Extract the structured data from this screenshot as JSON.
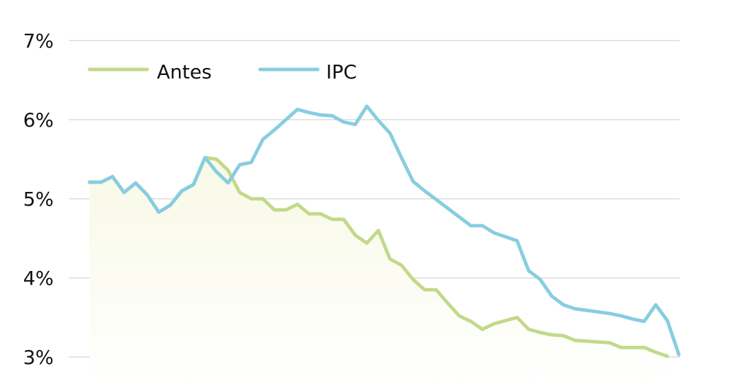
{
  "chart_data": {
    "type": "line",
    "title": "",
    "xlabel": "",
    "ylabel": "",
    "ylim": [
      3,
      7
    ],
    "y_ticks": [
      "3%",
      "4%",
      "5%",
      "6%",
      "7%"
    ],
    "y_tick_values": [
      3,
      4,
      5,
      6,
      7
    ],
    "grid": true,
    "legend": "top-left",
    "series": [
      {
        "name": "Antes",
        "color": "#c2d98a",
        "fill": "#f8f9e6",
        "values": [
          5.21,
          5.21,
          5.28,
          5.08,
          5.2,
          5.05,
          4.83,
          4.92,
          5.1,
          5.18,
          5.52,
          5.5,
          5.36,
          5.08,
          5.0,
          5.0,
          4.86,
          4.86,
          4.93,
          4.81,
          4.81,
          4.74,
          4.74,
          4.54,
          4.44,
          4.6,
          4.24,
          4.16,
          3.98,
          3.85,
          3.85,
          3.68,
          3.52,
          3.45,
          3.35,
          3.42,
          3.46,
          3.5,
          3.35,
          3.31,
          3.28,
          3.27,
          3.21,
          3.2,
          3.19,
          3.18,
          3.12,
          3.12,
          3.12,
          3.06,
          3.01
        ]
      },
      {
        "name": "IPC",
        "color": "#88cde0",
        "values": [
          5.21,
          5.21,
          5.28,
          5.08,
          5.2,
          5.05,
          4.83,
          4.92,
          5.1,
          5.18,
          5.52,
          5.34,
          5.2,
          5.43,
          5.46,
          5.75,
          5.87,
          6.0,
          6.13,
          6.09,
          6.06,
          6.05,
          5.97,
          5.94,
          6.17,
          5.99,
          5.83,
          5.52,
          5.22,
          5.1,
          4.99,
          4.88,
          4.77,
          4.66,
          4.66,
          4.57,
          4.52,
          4.47,
          4.09,
          3.98,
          3.77,
          3.66,
          3.61,
          3.59,
          3.57,
          3.55,
          3.52,
          3.48,
          3.45,
          3.66,
          3.46,
          3.03
        ]
      }
    ]
  }
}
